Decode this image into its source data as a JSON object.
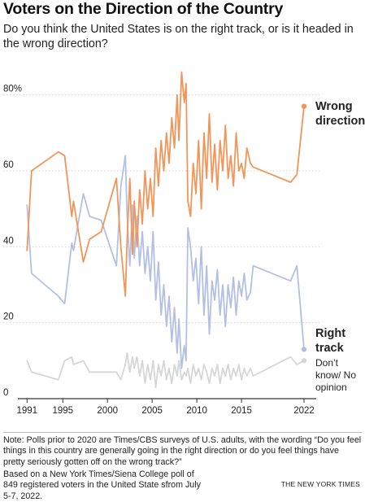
{
  "header": {
    "title": "Voters on the Direction of the Country",
    "subtitle": "Do you think the United States is on the right track, or is it headed in the wrong direction?"
  },
  "labels": {
    "wrong": "Wrong direction",
    "right": "Right track",
    "dontknow": "Don’t know/ No opinion"
  },
  "footer": {
    "note": "Note: Polls prior to 2020 are Times/CBS surveys of U.S. adults, with the wording “Do you feel things in this country are generally going in the right direction or do you feel things have pretty seriously gotten off on the wrong track?”",
    "source": "Based on a New York Times/Siena College poll of 849 registered voters in the United State sfrom July 5-7, 2022.",
    "credit": "THE NEW YORK TIMES"
  },
  "colors": {
    "wrong": "#f0965a",
    "right": "#b3c0e3",
    "dontknow": "#d6d6d6",
    "grid": "#d4d4d4",
    "axis": "#333333"
  },
  "chart_data": {
    "type": "line",
    "title": "Voters on the Direction of the Country",
    "xlim": [
      1990.7,
      2023
    ],
    "ylim": [
      0,
      90
    ],
    "xticks": [
      1991,
      1995,
      2000,
      2005,
      2010,
      2015,
      2022
    ],
    "xtick_labels": [
      "1991",
      "1995",
      "2000",
      "2005",
      "2010",
      "2015",
      "2022"
    ],
    "yticks": [
      0,
      20,
      40,
      60,
      80
    ],
    "ytick_labels": [
      "0",
      "20",
      "40",
      "60",
      "80%"
    ],
    "grid": "horizontal",
    "series": [
      {
        "name": "Wrong direction",
        "key": "wrong",
        "x": [
          1991.0,
          1991.5,
          1994.5,
          1995.2,
          1996.0,
          1996.2,
          1997.3,
          1998.0,
          1999.3,
          2001.0,
          2001.5,
          2002.0,
          2002.2,
          2002.5,
          2002.8,
          2003.0,
          2003.3,
          2003.6,
          2003.9,
          2004.2,
          2004.5,
          2004.8,
          2005.1,
          2005.4,
          2005.7,
          2006.0,
          2006.3,
          2006.6,
          2006.9,
          2007.2,
          2007.5,
          2007.8,
          2008.0,
          2008.3,
          2008.6,
          2008.8,
          2009.0,
          2009.3,
          2009.6,
          2009.9,
          2010.2,
          2010.5,
          2010.8,
          2011.1,
          2011.4,
          2011.7,
          2012.0,
          2012.3,
          2012.6,
          2012.9,
          2013.2,
          2013.5,
          2013.8,
          2014.1,
          2014.4,
          2014.7,
          2015.0,
          2015.3,
          2015.6,
          2016.0,
          2016.3,
          2020.5,
          2021.2,
          2022.0
        ],
        "values": [
          39,
          60,
          65,
          64,
          48,
          52,
          36,
          42,
          44,
          58,
          40,
          27,
          42,
          58,
          38,
          52,
          40,
          55,
          46,
          60,
          50,
          58,
          48,
          66,
          56,
          68,
          60,
          70,
          62,
          74,
          66,
          80,
          68,
          86,
          78,
          83,
          52,
          48,
          62,
          54,
          68,
          50,
          70,
          58,
          75,
          57,
          67,
          55,
          68,
          60,
          72,
          58,
          64,
          56,
          70,
          60,
          62,
          58,
          66,
          62,
          61,
          57,
          59,
          77
        ]
      },
      {
        "name": "Right track",
        "key": "right",
        "x": [
          1991.0,
          1991.5,
          1994.5,
          1995.2,
          1996.0,
          1996.2,
          1997.3,
          1998.0,
          1999.3,
          2001.0,
          2001.5,
          2002.0,
          2002.2,
          2002.5,
          2002.8,
          2003.0,
          2003.3,
          2003.6,
          2003.9,
          2004.2,
          2004.5,
          2004.8,
          2005.1,
          2005.4,
          2005.7,
          2006.0,
          2006.3,
          2006.6,
          2006.9,
          2007.2,
          2007.5,
          2007.8,
          2008.0,
          2008.3,
          2008.6,
          2008.8,
          2009.0,
          2009.3,
          2009.6,
          2009.9,
          2010.2,
          2010.5,
          2010.8,
          2011.1,
          2011.4,
          2011.7,
          2012.0,
          2012.3,
          2012.6,
          2012.9,
          2013.2,
          2013.5,
          2013.8,
          2014.1,
          2014.4,
          2014.7,
          2015.0,
          2015.3,
          2015.6,
          2016.0,
          2016.3,
          2020.5,
          2021.2,
          2022.0
        ],
        "values": [
          51,
          33,
          27,
          25,
          41,
          39,
          54,
          48,
          47,
          35,
          56,
          64,
          48,
          35,
          51,
          37,
          48,
          35,
          44,
          33,
          40,
          31,
          44,
          26,
          36,
          22,
          30,
          19,
          27,
          15,
          24,
          12,
          21,
          8,
          14,
          10,
          45,
          40,
          31,
          37,
          25,
          40,
          22,
          35,
          17,
          31,
          26,
          34,
          22,
          30,
          19,
          30,
          24,
          32,
          22,
          31,
          27,
          33,
          26,
          28,
          35,
          31,
          35,
          13
        ]
      },
      {
        "name": "Don’t know/ No opinion",
        "key": "dontknow",
        "x": [
          1991.0,
          1991.5,
          1994.5,
          1995.2,
          1996.0,
          1996.2,
          1997.3,
          1998.0,
          1999.3,
          2001.0,
          2001.5,
          2002.0,
          2002.2,
          2002.5,
          2002.8,
          2003.0,
          2003.3,
          2003.6,
          2003.9,
          2004.2,
          2004.5,
          2004.8,
          2005.1,
          2005.4,
          2005.7,
          2006.0,
          2006.3,
          2006.6,
          2006.9,
          2007.2,
          2007.5,
          2007.8,
          2008.0,
          2008.3,
          2008.6,
          2008.8,
          2009.0,
          2009.3,
          2009.6,
          2009.9,
          2010.2,
          2010.5,
          2010.8,
          2011.1,
          2011.4,
          2011.7,
          2012.0,
          2012.3,
          2012.6,
          2012.9,
          2013.2,
          2013.5,
          2013.8,
          2014.1,
          2014.4,
          2014.7,
          2015.0,
          2015.3,
          2015.6,
          2016.0,
          2016.3,
          2020.5,
          2021.2,
          2022.0
        ],
        "values": [
          10,
          7,
          5,
          10,
          11,
          9,
          10,
          7,
          7,
          7,
          5,
          9,
          12,
          7,
          11,
          8,
          11,
          6,
          10,
          4,
          9,
          5,
          10,
          3,
          9,
          6,
          10,
          5,
          8,
          4,
          9,
          6,
          10,
          5,
          7,
          6,
          8,
          4,
          9,
          6,
          8,
          5,
          9,
          7,
          4,
          8,
          6,
          9,
          4,
          8,
          6,
          9,
          5,
          8,
          6,
          9,
          5,
          8,
          6,
          8,
          6,
          11,
          9,
          10
        ]
      }
    ]
  }
}
